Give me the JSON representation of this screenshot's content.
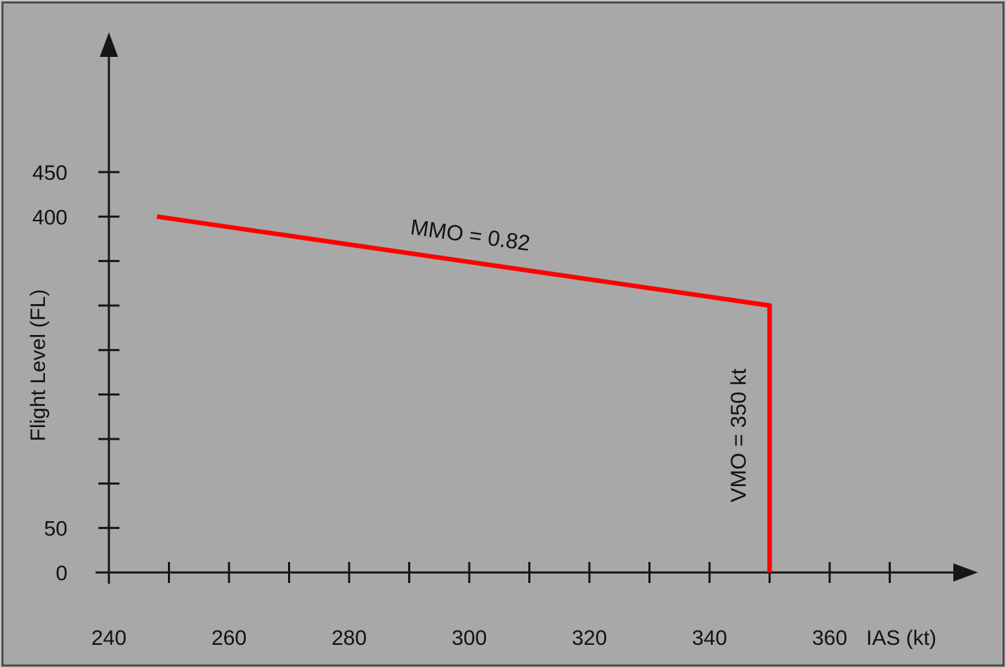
{
  "frame": {
    "background": "#a8a8a8",
    "border_color": "#4e4e4e"
  },
  "chart_data": {
    "type": "line",
    "title": "",
    "xlabel": "IAS (kt)",
    "ylabel": "Flight Level (FL)",
    "xlim": [
      240,
      372
    ],
    "ylim": [
      0,
      500
    ],
    "grid": false,
    "legend": "none",
    "x_axis": {
      "ticks": [
        250,
        260,
        270,
        280,
        290,
        300,
        310,
        320,
        330,
        340,
        350,
        360,
        370
      ],
      "labels": [
        240,
        260,
        280,
        300,
        320,
        340,
        360
      ]
    },
    "y_axis": {
      "ticks": [
        50,
        100,
        150,
        200,
        250,
        300,
        350,
        400,
        450
      ],
      "labels": [
        450,
        400,
        50,
        0
      ]
    },
    "series": [
      {
        "name": "speed-limit-envelope",
        "color": "#ff0000",
        "stroke_width": 6.5,
        "points": [
          [
            248,
            400
          ],
          [
            350,
            300
          ],
          [
            350,
            0
          ]
        ]
      }
    ],
    "annotations": [
      {
        "name": "mmo-limit-label",
        "text": "MMO = 0.82",
        "x": 300,
        "y": 371,
        "rotation": 8
      },
      {
        "name": "vmo-limit-label",
        "text": "VMO = 350 kt",
        "x": 346,
        "y": 154,
        "rotation": -90
      }
    ]
  }
}
